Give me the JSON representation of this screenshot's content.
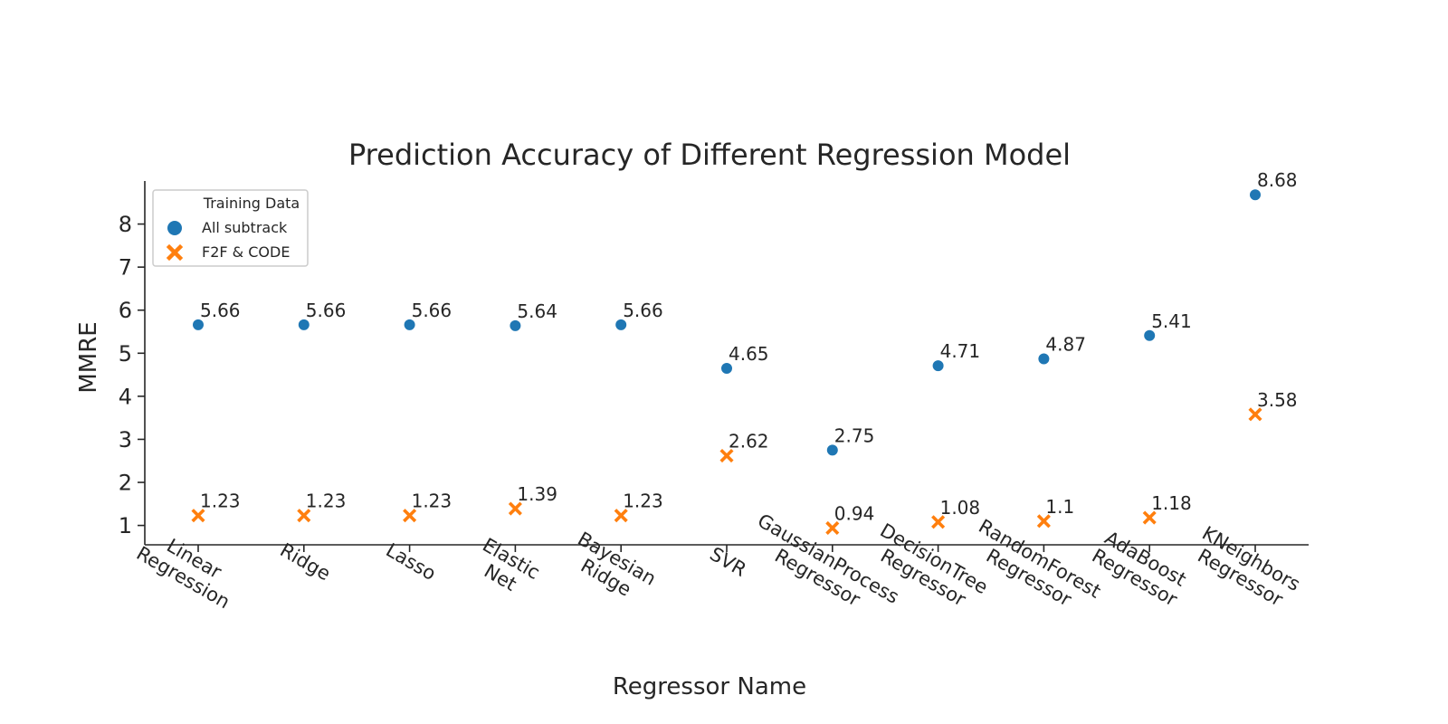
{
  "chart_data": {
    "type": "scatter",
    "title": "Prediction Accuracy of Different Regression Model",
    "xlabel": "Regressor Name",
    "ylabel": "MMRE",
    "categories": [
      [
        "Linear",
        "Regression"
      ],
      [
        "Ridge"
      ],
      [
        "Lasso"
      ],
      [
        "Elastic",
        "Net"
      ],
      [
        "Bayesian",
        "Ridge"
      ],
      [
        "SVR"
      ],
      [
        "GaussianProcess",
        "Regressor"
      ],
      [
        "DecisionTree",
        "Regressor"
      ],
      [
        "RandomForest",
        "Regressor"
      ],
      [
        "AdaBoost",
        "Regressor"
      ],
      [
        "KNeighbors",
        "Regressor"
      ]
    ],
    "yticks": [
      1,
      2,
      3,
      4,
      5,
      6,
      7,
      8
    ],
    "ylim": [
      0.55,
      9.0
    ],
    "grid": false,
    "legend": {
      "title": "Training Data",
      "placement": "top-left"
    },
    "series": [
      {
        "name": "All subtrack",
        "marker": "circle",
        "color": "#1f77b4",
        "values": [
          5.66,
          5.66,
          5.66,
          5.64,
          5.66,
          4.65,
          2.75,
          4.71,
          4.87,
          5.41,
          8.68
        ],
        "labels": [
          "5.66",
          "5.66",
          "5.66",
          "5.64",
          "5.66",
          "4.65",
          "2.75",
          "4.71",
          "4.87",
          "5.41",
          "8.68"
        ]
      },
      {
        "name": "F2F & CODE",
        "marker": "x",
        "color": "#ff7f0e",
        "values": [
          1.23,
          1.23,
          1.23,
          1.39,
          1.23,
          2.62,
          0.94,
          1.08,
          1.1,
          1.18,
          3.58
        ],
        "labels": [
          "1.23",
          "1.23",
          "1.23",
          "1.39",
          "1.23",
          "2.62",
          "0.94",
          "1.08",
          "1.1",
          "1.18",
          "3.58"
        ]
      }
    ]
  }
}
